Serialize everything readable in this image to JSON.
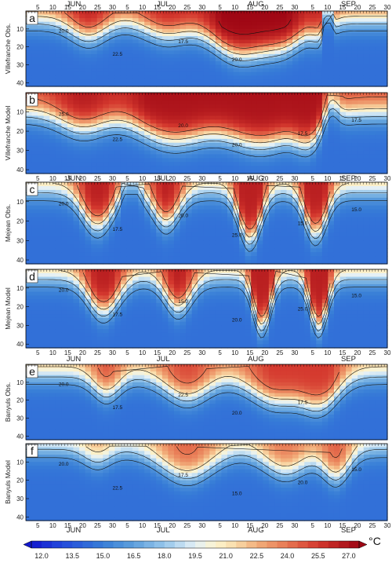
{
  "chart_data": {
    "type": "heatmap",
    "months": [
      {
        "label": "JUN",
        "day": 17
      },
      {
        "label": "JUL",
        "day": 47
      },
      {
        "label": "AUG",
        "day": 78
      },
      {
        "label": "SEP",
        "day": 109
      }
    ],
    "day_ticks": [
      5,
      10,
      15,
      20,
      25,
      30,
      5,
      10,
      15,
      20,
      25,
      30,
      5,
      10,
      15,
      20,
      25,
      30,
      5,
      10,
      15,
      20,
      25,
      30
    ],
    "day_tick_positions": [
      5,
      10,
      15,
      20,
      25,
      30,
      35,
      40,
      45,
      50,
      55,
      60,
      66,
      71,
      76,
      81,
      86,
      91,
      97,
      102,
      107,
      112,
      117,
      122
    ],
    "depth_ticks": [
      10,
      20,
      30,
      40
    ],
    "depth_range": [
      0,
      42
    ],
    "time_range_days": [
      1,
      122
    ],
    "colorbar": {
      "ticks": [
        "12.0",
        "13.5",
        "15.0",
        "16.5",
        "18.0",
        "19.5",
        "21.0",
        "22.5",
        "24.0",
        "25.5",
        "27.0"
      ],
      "range": [
        11.5,
        27.5
      ],
      "unit": "°C"
    },
    "panels": [
      {
        "letter": "a",
        "ylabel": "Villefranche Obs.",
        "contours": [
          "20.0",
          "22.5",
          "17.5",
          "20.0"
        ]
      },
      {
        "letter": "b",
        "ylabel": "Villefranche Model",
        "contours": [
          "25.0",
          "22.5",
          "20.0",
          "20.0",
          "17.5",
          "17.5"
        ]
      },
      {
        "letter": "c",
        "ylabel": "Mejean Obs.",
        "contours": [
          "20.0",
          "17.5",
          "20.0",
          "25.0",
          "15.0",
          "15.0"
        ]
      },
      {
        "letter": "d",
        "ylabel": "Mejean Model",
        "contours": [
          "20.0",
          "17.5",
          "15.0",
          "20.0",
          "25.0",
          "15.0"
        ]
      },
      {
        "letter": "e",
        "ylabel": "Banyuls Obs.",
        "contours": [
          "20.0",
          "17.5",
          "22.5",
          "20.0",
          "17.5"
        ]
      },
      {
        "letter": "f",
        "ylabel": "Banyuls Model",
        "contours": [
          "20.0",
          "22.5",
          "17.5",
          "15.0",
          "20.0",
          "15.0"
        ]
      }
    ]
  }
}
